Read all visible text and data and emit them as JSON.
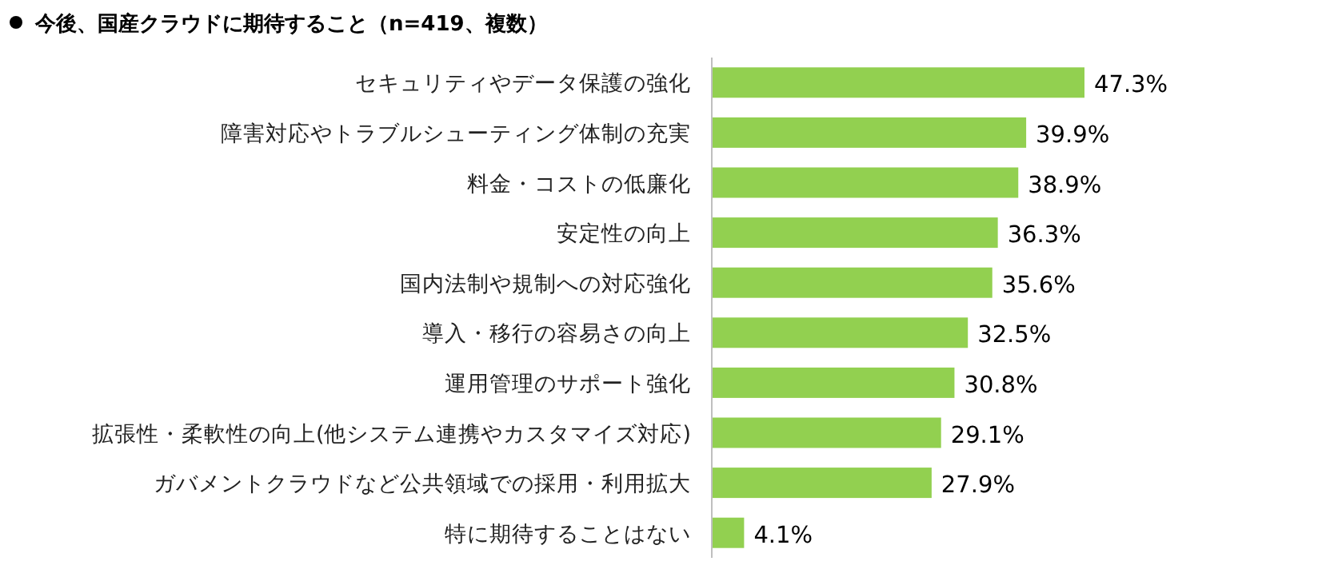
{
  "chart_data": {
    "type": "bar",
    "orientation": "horizontal",
    "title": "今後、国産クラウドに期待すること（n=419、複数）",
    "categories": [
      "セキュリティやデータ保護の強化",
      "障害対応やトラブルシューティング体制の充実",
      "料金・コストの低廉化",
      "安定性の向上",
      "国内法制や規制への対応強化",
      "導入・移行の容易さの向上",
      "運用管理のサポート強化",
      "拡張性・柔軟性の向上(他システム連携やカスタマイズ対応)",
      "ガバメントクラウドなど公共領域での採用・利用拡大",
      "特に期待することはない"
    ],
    "values": [
      47.3,
      39.9,
      38.9,
      36.3,
      35.6,
      32.5,
      30.8,
      29.1,
      27.9,
      4.1
    ],
    "value_labels": [
      "47.3%",
      "39.9%",
      "38.9%",
      "36.3%",
      "35.6%",
      "32.5%",
      "30.8%",
      "29.1%",
      "27.9%",
      "4.1%"
    ],
    "color": "#92d050"
  }
}
